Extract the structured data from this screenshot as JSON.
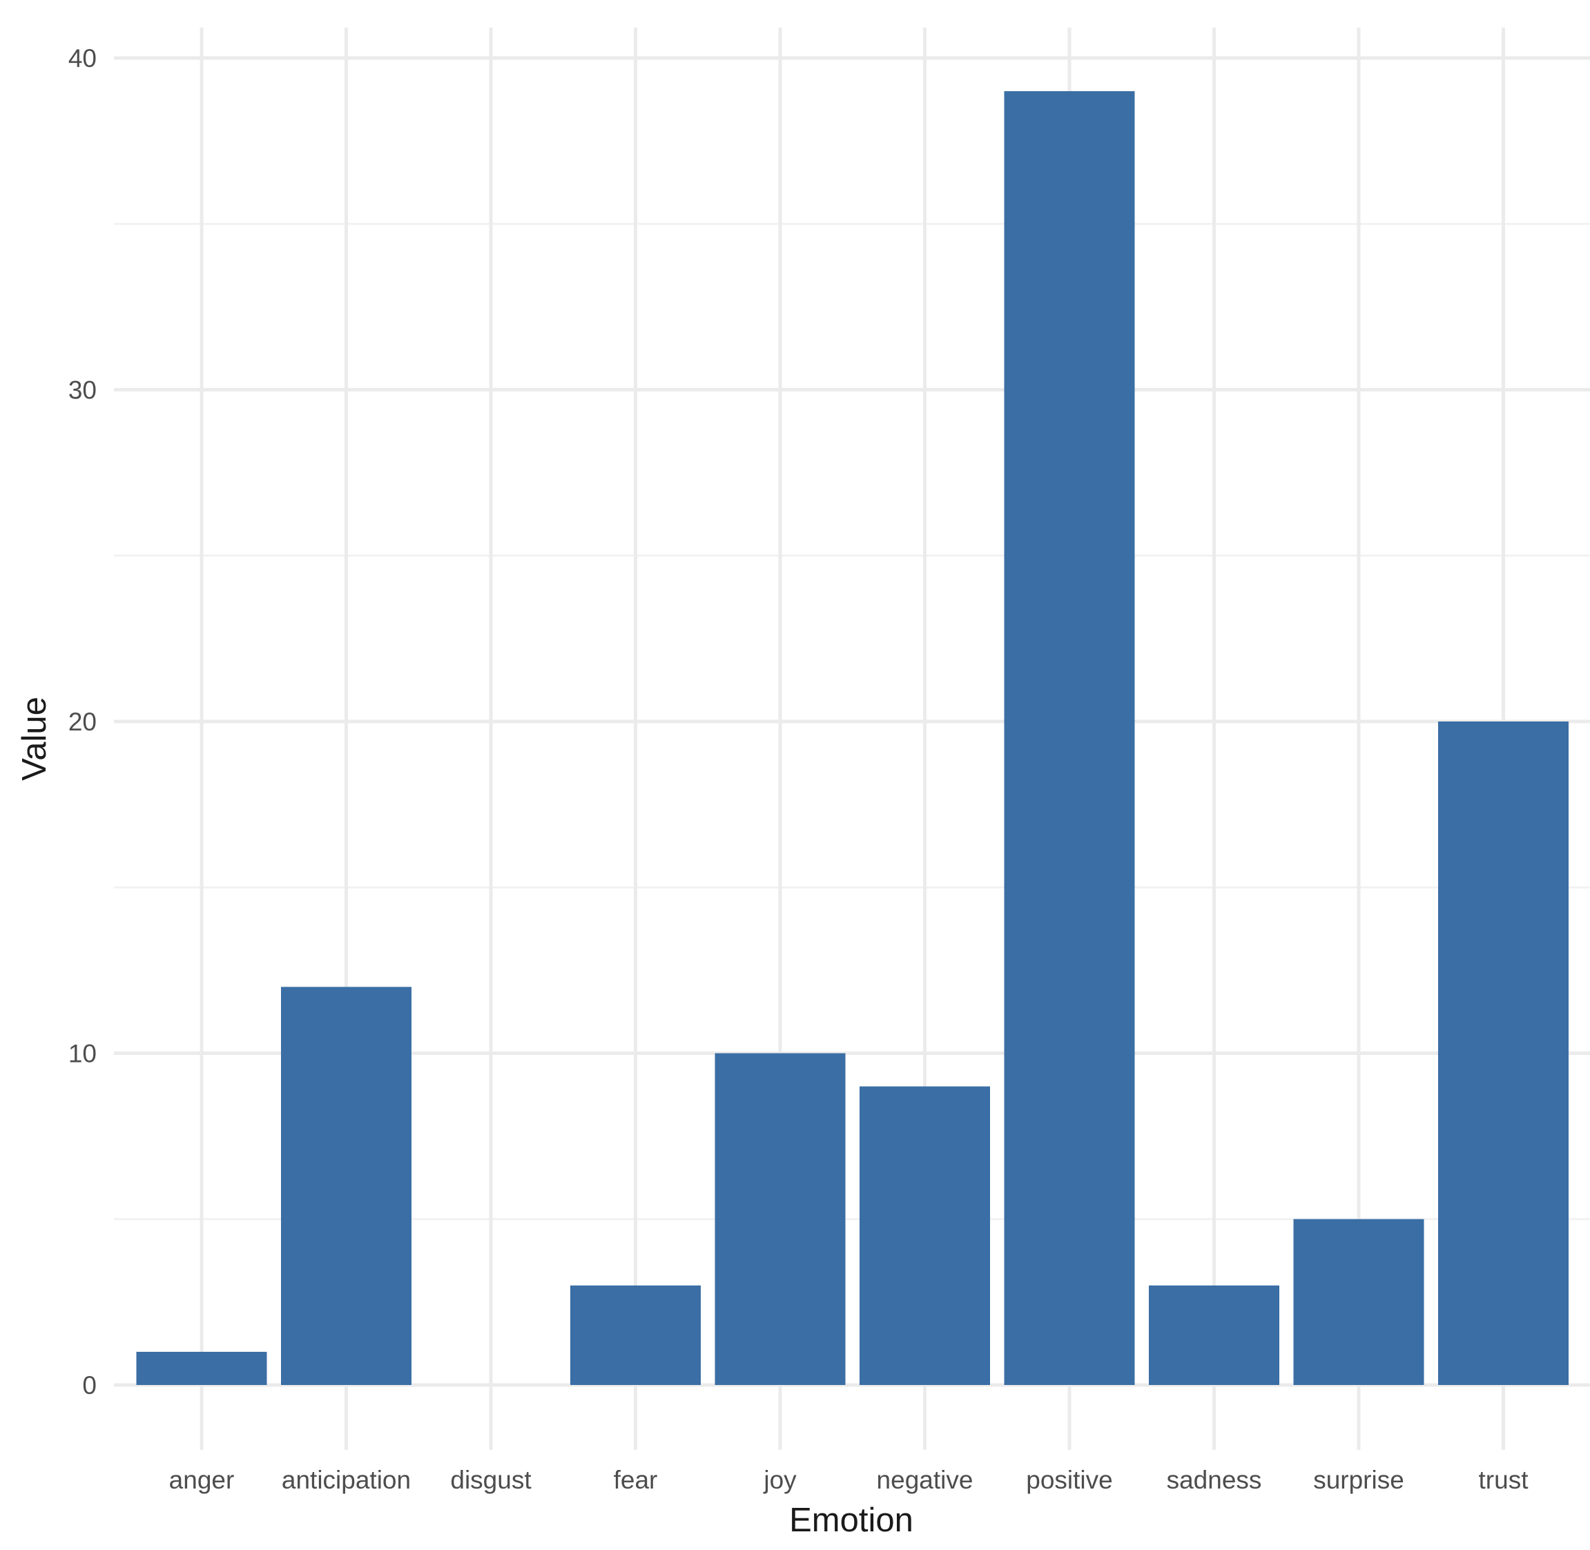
{
  "chart_data": {
    "type": "bar",
    "categories": [
      "anger",
      "anticipation",
      "disgust",
      "fear",
      "joy",
      "negative",
      "positive",
      "sadness",
      "surprise",
      "trust"
    ],
    "values": [
      1,
      12,
      0,
      3,
      10,
      9,
      39,
      3,
      5,
      20
    ],
    "xlabel": "Emotion",
    "ylabel": "Value",
    "ylim": [
      0,
      40
    ],
    "yticks": [
      "0",
      "10",
      "20",
      "30",
      "40"
    ],
    "grid": true,
    "legend": "none",
    "bar_color": "#3A6EA5"
  }
}
